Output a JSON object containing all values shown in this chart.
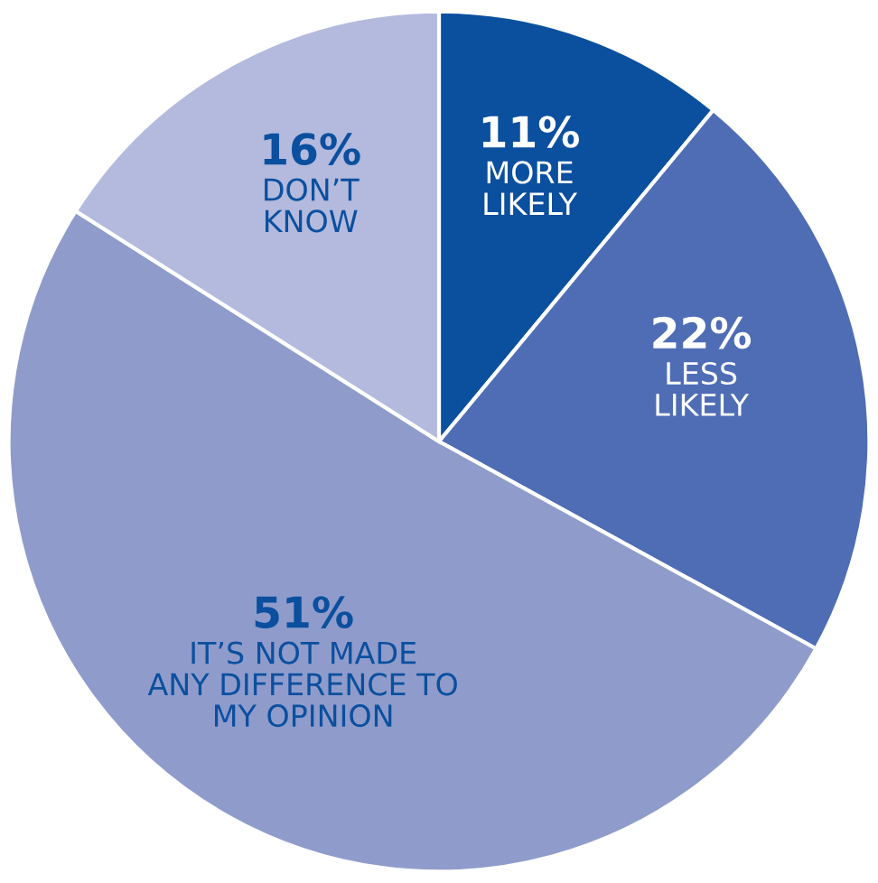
{
  "chart_data": {
    "type": "pie",
    "categories": [
      "MORE\nLIKELY",
      "LESS\nLIKELY",
      "IT’S NOT MADE\nANY DIFFERENCE TO\nMY OPINION",
      "DON’T\nKNOW"
    ],
    "values": [
      11,
      22,
      51,
      16
    ],
    "value_labels": [
      "11%",
      "22%",
      "51%",
      "16%"
    ],
    "colors": [
      "#0b4f9f",
      "#4f6db5",
      "#8f9ccb",
      "#b3badd"
    ]
  }
}
